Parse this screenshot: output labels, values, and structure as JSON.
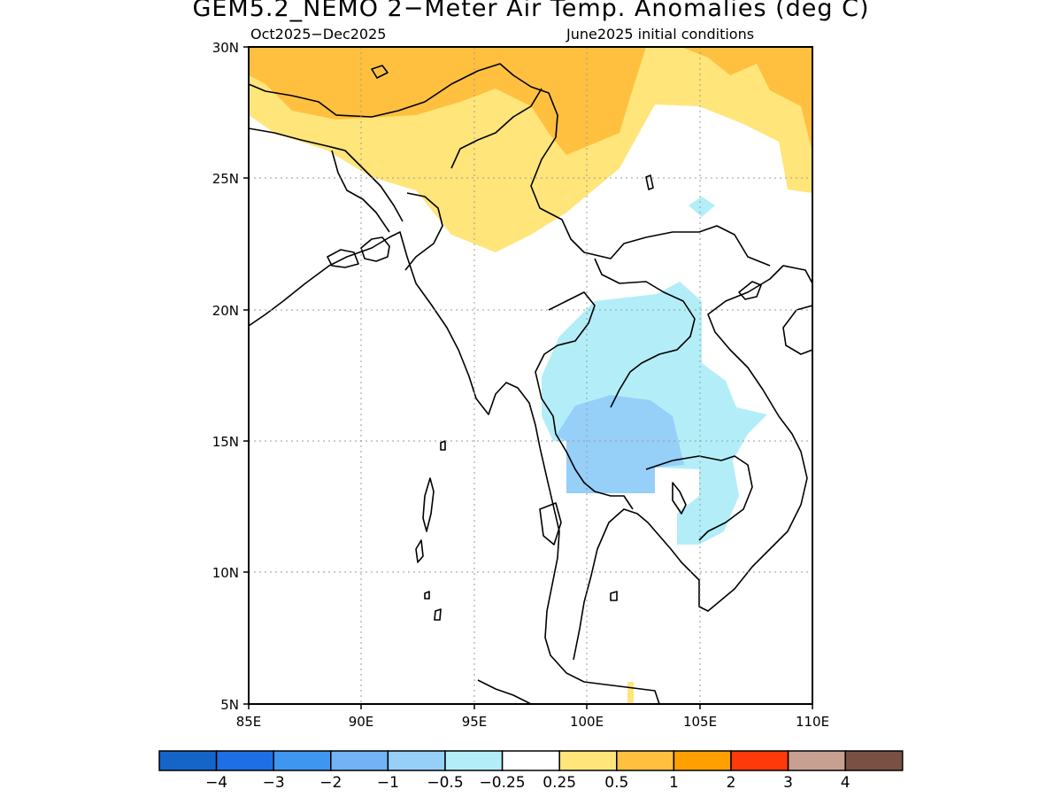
{
  "title": "GEM5.2_NEMO 2−Meter Air Temp. Anomalies (deg C)",
  "subtitle_left": "Oct2025−Dec2025",
  "subtitle_right": "June2025 initial conditions",
  "map": {
    "lon_range": [
      85,
      110
    ],
    "lat_range": [
      5,
      30
    ],
    "lon_ticks": [
      "85E",
      "90E",
      "95E",
      "100E",
      "105E",
      "110E"
    ],
    "lat_ticks": [
      "30N",
      "25N",
      "20N",
      "15N",
      "10N",
      "5N"
    ],
    "grid": true,
    "grid_style": "dotted"
  },
  "colorbar": {
    "colors": [
      "#1565c8",
      "#1e6ee6",
      "#3f96f0",
      "#73b2f5",
      "#96cff8",
      "#b3eef8",
      "#ffffff",
      "#ffe57a",
      "#ffc040",
      "#ffa000",
      "#ff3a0a",
      "#c8a092",
      "#7a5045"
    ],
    "labels": [
      "−4",
      "−3",
      "−2",
      "−1",
      "−0.5",
      "−0.25",
      "0.25",
      "0.5",
      "1",
      "2",
      "3",
      "4"
    ]
  },
  "anomaly_colors": {
    "above_0_25": "#ffe57a",
    "above_0_5": "#ffc040",
    "below_minus_0_25": "#b3eef8",
    "below_minus_0_5": "#96cff8"
  }
}
